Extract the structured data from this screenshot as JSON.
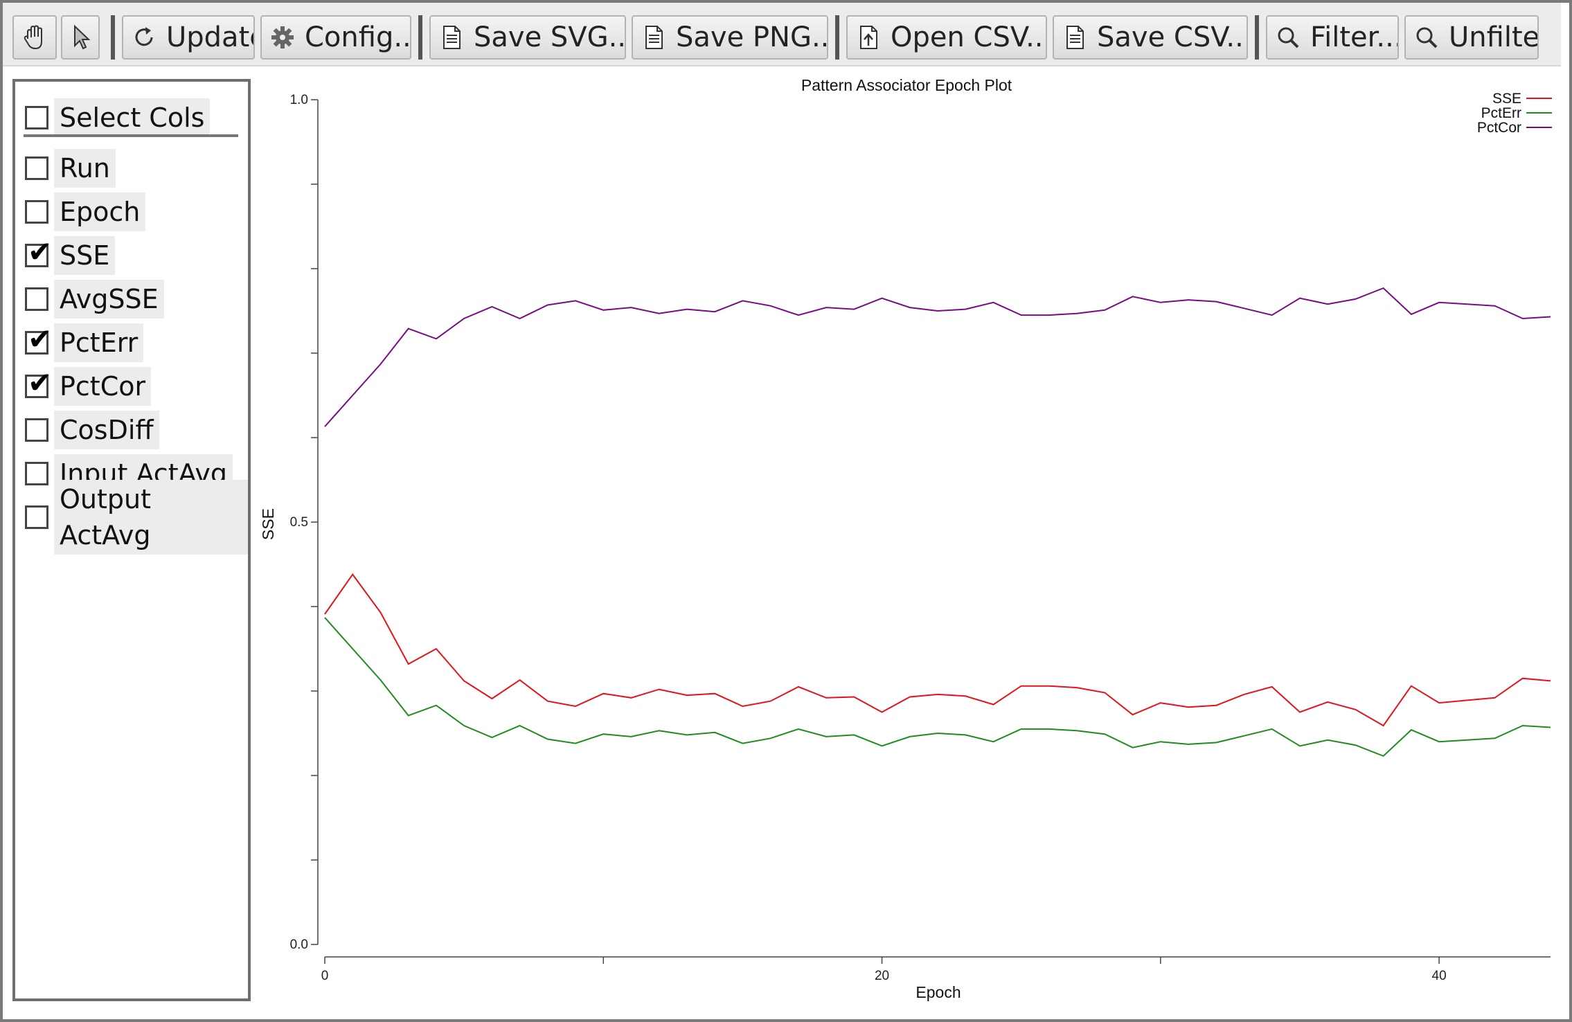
{
  "toolbar": {
    "buttons": [
      {
        "id": "pan",
        "icon": "hand-icon"
      },
      {
        "id": "select",
        "icon": "pointer-icon"
      },
      {
        "id": "update",
        "label": "Update",
        "icon": "refresh-icon"
      },
      {
        "id": "config",
        "label": "Config...",
        "icon": "gear-icon"
      },
      {
        "id": "save-svg",
        "label": "Save SVG...",
        "icon": "document-icon"
      },
      {
        "id": "save-png",
        "label": "Save PNG...",
        "icon": "document-icon"
      },
      {
        "id": "open-csv",
        "label": "Open CSV...",
        "icon": "open-file-icon"
      },
      {
        "id": "save-csv",
        "label": "Save CSV...",
        "icon": "document-icon"
      },
      {
        "id": "filter",
        "label": "Filter...",
        "icon": "magnifier-icon"
      },
      {
        "id": "unfilter",
        "label": "Unfilter",
        "icon": "magnifier-icon"
      }
    ]
  },
  "sidebar": {
    "select_cols": {
      "label": "Select Cols",
      "checked": false
    },
    "columns": [
      {
        "label": "Run",
        "checked": false
      },
      {
        "label": "Epoch",
        "checked": false
      },
      {
        "label": "SSE",
        "checked": true
      },
      {
        "label": "AvgSSE",
        "checked": false
      },
      {
        "label": "PctErr",
        "checked": true
      },
      {
        "label": "PctCor",
        "checked": true
      },
      {
        "label": "CosDiff",
        "checked": false
      },
      {
        "label": "Input ActAvg",
        "checked": false
      },
      {
        "label": "Output ActAvg",
        "checked": false
      }
    ]
  },
  "chart_data": {
    "type": "line",
    "title": "Pattern Associator Epoch Plot",
    "xlabel": "Epoch",
    "ylabel": "SSE",
    "xlim": [
      0,
      44
    ],
    "ylim": [
      0.0,
      1.0
    ],
    "x_ticks": [
      0,
      10,
      20,
      30,
      40
    ],
    "x_tick_labels": [
      "0",
      "",
      "20",
      "",
      "40"
    ],
    "y_ticks": [
      0.0,
      0.1,
      0.2,
      0.3,
      0.4,
      0.5,
      0.6,
      0.7,
      0.8,
      0.9,
      1.0
    ],
    "y_tick_labels": [
      "0.0",
      "",
      "",
      "",
      "",
      "0.5",
      "",
      "",
      "",
      "",
      "1.0"
    ],
    "legend_position": "top-right",
    "x": [
      0,
      1,
      2,
      3,
      4,
      5,
      6,
      7,
      8,
      9,
      10,
      11,
      12,
      13,
      14,
      15,
      16,
      17,
      18,
      19,
      20,
      21,
      22,
      23,
      24,
      25,
      26,
      27,
      28,
      29,
      30,
      31,
      32,
      33,
      34,
      35,
      36,
      37,
      38,
      39,
      40,
      41,
      42,
      43,
      44
    ],
    "series": [
      {
        "name": "SSE",
        "color": "#e8111a",
        "values": [
          0.391,
          0.438,
          0.393,
          0.332,
          0.35,
          0.312,
          0.291,
          0.313,
          0.288,
          0.282,
          0.297,
          0.292,
          0.302,
          0.295,
          0.297,
          0.282,
          0.288,
          0.305,
          0.292,
          0.293,
          0.275,
          0.293,
          0.296,
          0.294,
          0.284,
          0.306,
          0.306,
          0.304,
          0.298,
          0.272,
          0.286,
          0.281,
          0.283,
          0.296,
          0.305,
          0.275,
          0.287,
          0.278,
          0.259,
          0.306,
          0.286,
          0.289,
          0.292,
          0.315,
          0.312
        ]
      },
      {
        "name": "PctErr",
        "color": "#1e8c1e",
        "values": [
          0.387,
          0.35,
          0.313,
          0.271,
          0.283,
          0.259,
          0.245,
          0.259,
          0.243,
          0.238,
          0.249,
          0.246,
          0.253,
          0.248,
          0.251,
          0.238,
          0.244,
          0.255,
          0.246,
          0.248,
          0.235,
          0.246,
          0.25,
          0.248,
          0.24,
          0.255,
          0.255,
          0.253,
          0.249,
          0.233,
          0.24,
          0.237,
          0.239,
          0.247,
          0.255,
          0.235,
          0.242,
          0.236,
          0.223,
          0.254,
          0.24,
          0.242,
          0.244,
          0.259,
          0.257
        ]
      },
      {
        "name": "PctCor",
        "color": "#7a0a86",
        "values": [
          0.613,
          0.65,
          0.687,
          0.729,
          0.717,
          0.741,
          0.755,
          0.741,
          0.757,
          0.762,
          0.751,
          0.754,
          0.747,
          0.752,
          0.749,
          0.762,
          0.756,
          0.745,
          0.754,
          0.752,
          0.765,
          0.754,
          0.75,
          0.752,
          0.76,
          0.745,
          0.745,
          0.747,
          0.751,
          0.767,
          0.76,
          0.763,
          0.761,
          0.753,
          0.745,
          0.765,
          0.758,
          0.764,
          0.777,
          0.746,
          0.76,
          0.758,
          0.756,
          0.741,
          0.743
        ]
      }
    ]
  }
}
